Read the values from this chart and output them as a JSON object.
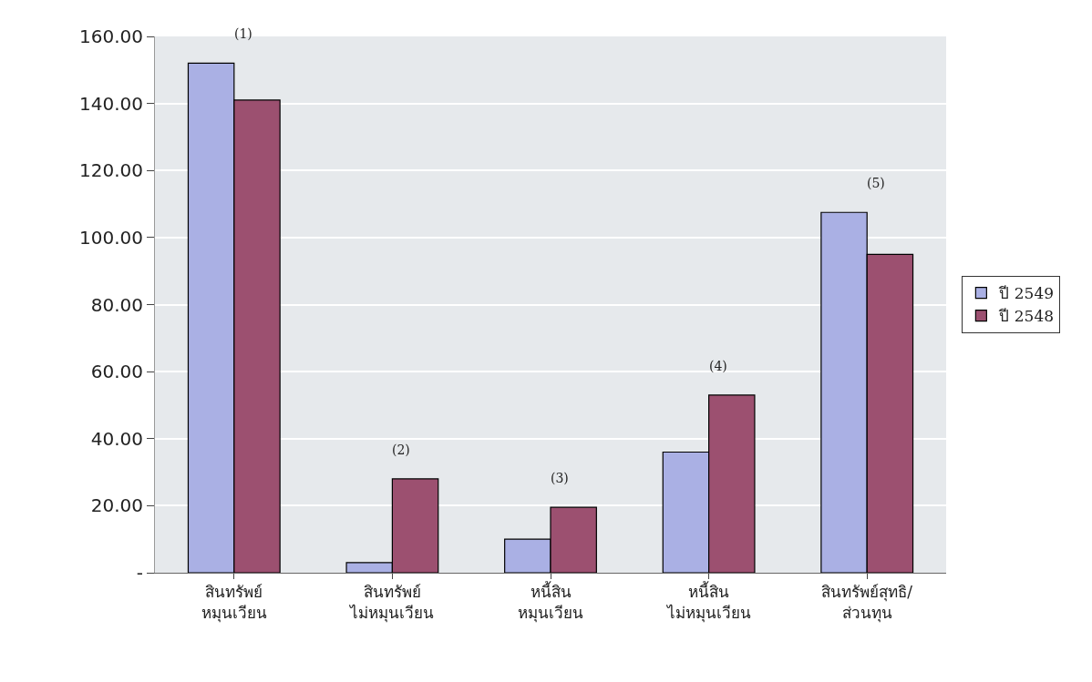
{
  "chart_data": {
    "type": "bar",
    "categories": [
      "สินทรัพย์\nหมุนเวียน",
      "สินทรัพย์\nไม่หมุนเวียน",
      "หนี้สิน\nหมุนเวียน",
      "หนี้สิน\nไม่หมุนเวียน",
      "สินทรัพย์สุทธิ/\nส่วนทุน"
    ],
    "series": [
      {
        "name": "ปี 2549",
        "color": "#aab0e4",
        "values": [
          152,
          3,
          10,
          36,
          107.5
        ]
      },
      {
        "name": "ปี 2548",
        "color": "#9c5070",
        "values": [
          141,
          28,
          19.5,
          53,
          95
        ]
      }
    ],
    "ylim": [
      0,
      160
    ],
    "yticks": [
      {
        "value": 0,
        "label": "-"
      },
      {
        "value": 20,
        "label": "20.00"
      },
      {
        "value": 40,
        "label": "40.00"
      },
      {
        "value": 60,
        "label": "60.00"
      },
      {
        "value": 80,
        "label": "80.00"
      },
      {
        "value": 100,
        "label": "100.00"
      },
      {
        "value": 120,
        "label": "120.00"
      },
      {
        "value": 140,
        "label": "140.00"
      },
      {
        "value": 160,
        "label": "160.00"
      }
    ],
    "annotations": [
      "(1)",
      "(2)",
      "(3)",
      "(4)",
      "(5)"
    ],
    "grid": "y",
    "legend": "right"
  }
}
